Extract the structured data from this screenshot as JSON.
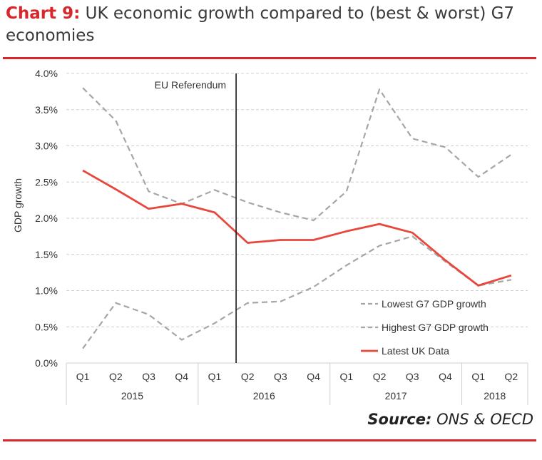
{
  "header": {
    "title_lead": "Chart 9:",
    "title_text": "UK economic growth compared to (best & worst) G7 economies"
  },
  "footer": {
    "source_label": "Source:",
    "source_value": "ONS & OECD"
  },
  "colors": {
    "accent": "#d9262b",
    "uk_line": "#e8473d",
    "g7_lines": "#a6a6a6",
    "marker_line": "#1a1a1a"
  },
  "chart_data": {
    "type": "line",
    "title": "",
    "xlabel": "",
    "ylabel": "GDP growth",
    "ylim": [
      0,
      4
    ],
    "yticks": [
      "0.0%",
      "0.5%",
      "1.0%",
      "1.5%",
      "2.0%",
      "2.5%",
      "3.0%",
      "3.5%",
      "4.0%"
    ],
    "categories": [
      "Q1",
      "Q2",
      "Q3",
      "Q4",
      "Q1",
      "Q2",
      "Q3",
      "Q4",
      "Q1",
      "Q2",
      "Q3",
      "Q4",
      "Q1",
      "Q2"
    ],
    "year_groups": [
      {
        "label": "2015",
        "count": 4
      },
      {
        "label": "2016",
        "count": 4
      },
      {
        "label": "2017",
        "count": 4
      },
      {
        "label": "2018",
        "count": 2
      }
    ],
    "grid": true,
    "legend_position": "bottom-right",
    "annotation": {
      "label": "EU Referendum",
      "at_index": 5
    },
    "series": [
      {
        "name": "Lowest G7 GDP growth",
        "style": "dashed",
        "values": [
          0.2,
          0.83,
          0.67,
          0.32,
          0.55,
          0.83,
          0.85,
          1.05,
          1.35,
          1.62,
          1.75,
          1.4,
          1.07,
          1.15
        ]
      },
      {
        "name": "Highest G7 GDP growth",
        "style": "dashed",
        "values": [
          3.8,
          3.35,
          2.37,
          2.2,
          2.39,
          2.22,
          2.08,
          1.97,
          2.37,
          3.78,
          3.1,
          2.98,
          2.57,
          2.88
        ]
      },
      {
        "name": "Latest UK Data",
        "style": "solid",
        "values": [
          2.66,
          2.4,
          2.13,
          2.2,
          2.08,
          1.66,
          1.7,
          1.7,
          1.82,
          1.92,
          1.8,
          1.42,
          1.07,
          1.21
        ]
      }
    ]
  }
}
